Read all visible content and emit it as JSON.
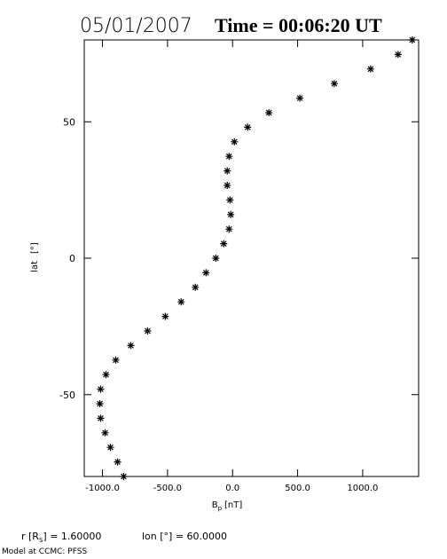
{
  "chart_data": {
    "type": "scatter",
    "title": {
      "date": "05/01/2007",
      "time": "Time = 00:06:20 UT"
    },
    "xlabel": {
      "symbol": "B",
      "subscript": "p",
      "unit": "[nT]"
    },
    "ylabel": {
      "name": "lat",
      "unit": "[°]"
    },
    "footer": {
      "r_label": "r [R",
      "r_sub": "S",
      "r_value": "] = 1.60000",
      "lon": "lon [°] = 60.0000",
      "model": "Model at CCMC: PFSS"
    },
    "xlim": [
      -1140,
      1430
    ],
    "ylim": [
      -80,
      80
    ],
    "xticks": [
      {
        "value": -1000,
        "label": "-1000.0"
      },
      {
        "value": -500,
        "label": "-500.0"
      },
      {
        "value": 0,
        "label": "0.0"
      },
      {
        "value": 500,
        "label": "500.0"
      },
      {
        "value": 1000,
        "label": "1000.0"
      }
    ],
    "yticks": [
      -50,
      0,
      50
    ],
    "color": "#000000",
    "x": [
      1381,
      1272,
      1061,
      782,
      517,
      279,
      116,
      14,
      -27,
      -41,
      -41,
      -20,
      -14,
      -27,
      -68,
      -129,
      -204,
      -286,
      -395,
      -517,
      -653,
      -782,
      -898,
      -973,
      -1014,
      -1020,
      -1014,
      -980,
      -939,
      -884,
      -837
    ],
    "y": [
      80,
      74.67,
      69.33,
      64,
      58.67,
      53.33,
      48,
      42.67,
      37.33,
      32,
      26.67,
      21.33,
      16,
      10.67,
      5.33,
      0,
      -5.33,
      -10.67,
      -16,
      -21.33,
      -26.67,
      -32,
      -37.33,
      -42.67,
      -48,
      -53.33,
      -58.67,
      -64,
      -69.33,
      -74.67,
      -80
    ]
  }
}
